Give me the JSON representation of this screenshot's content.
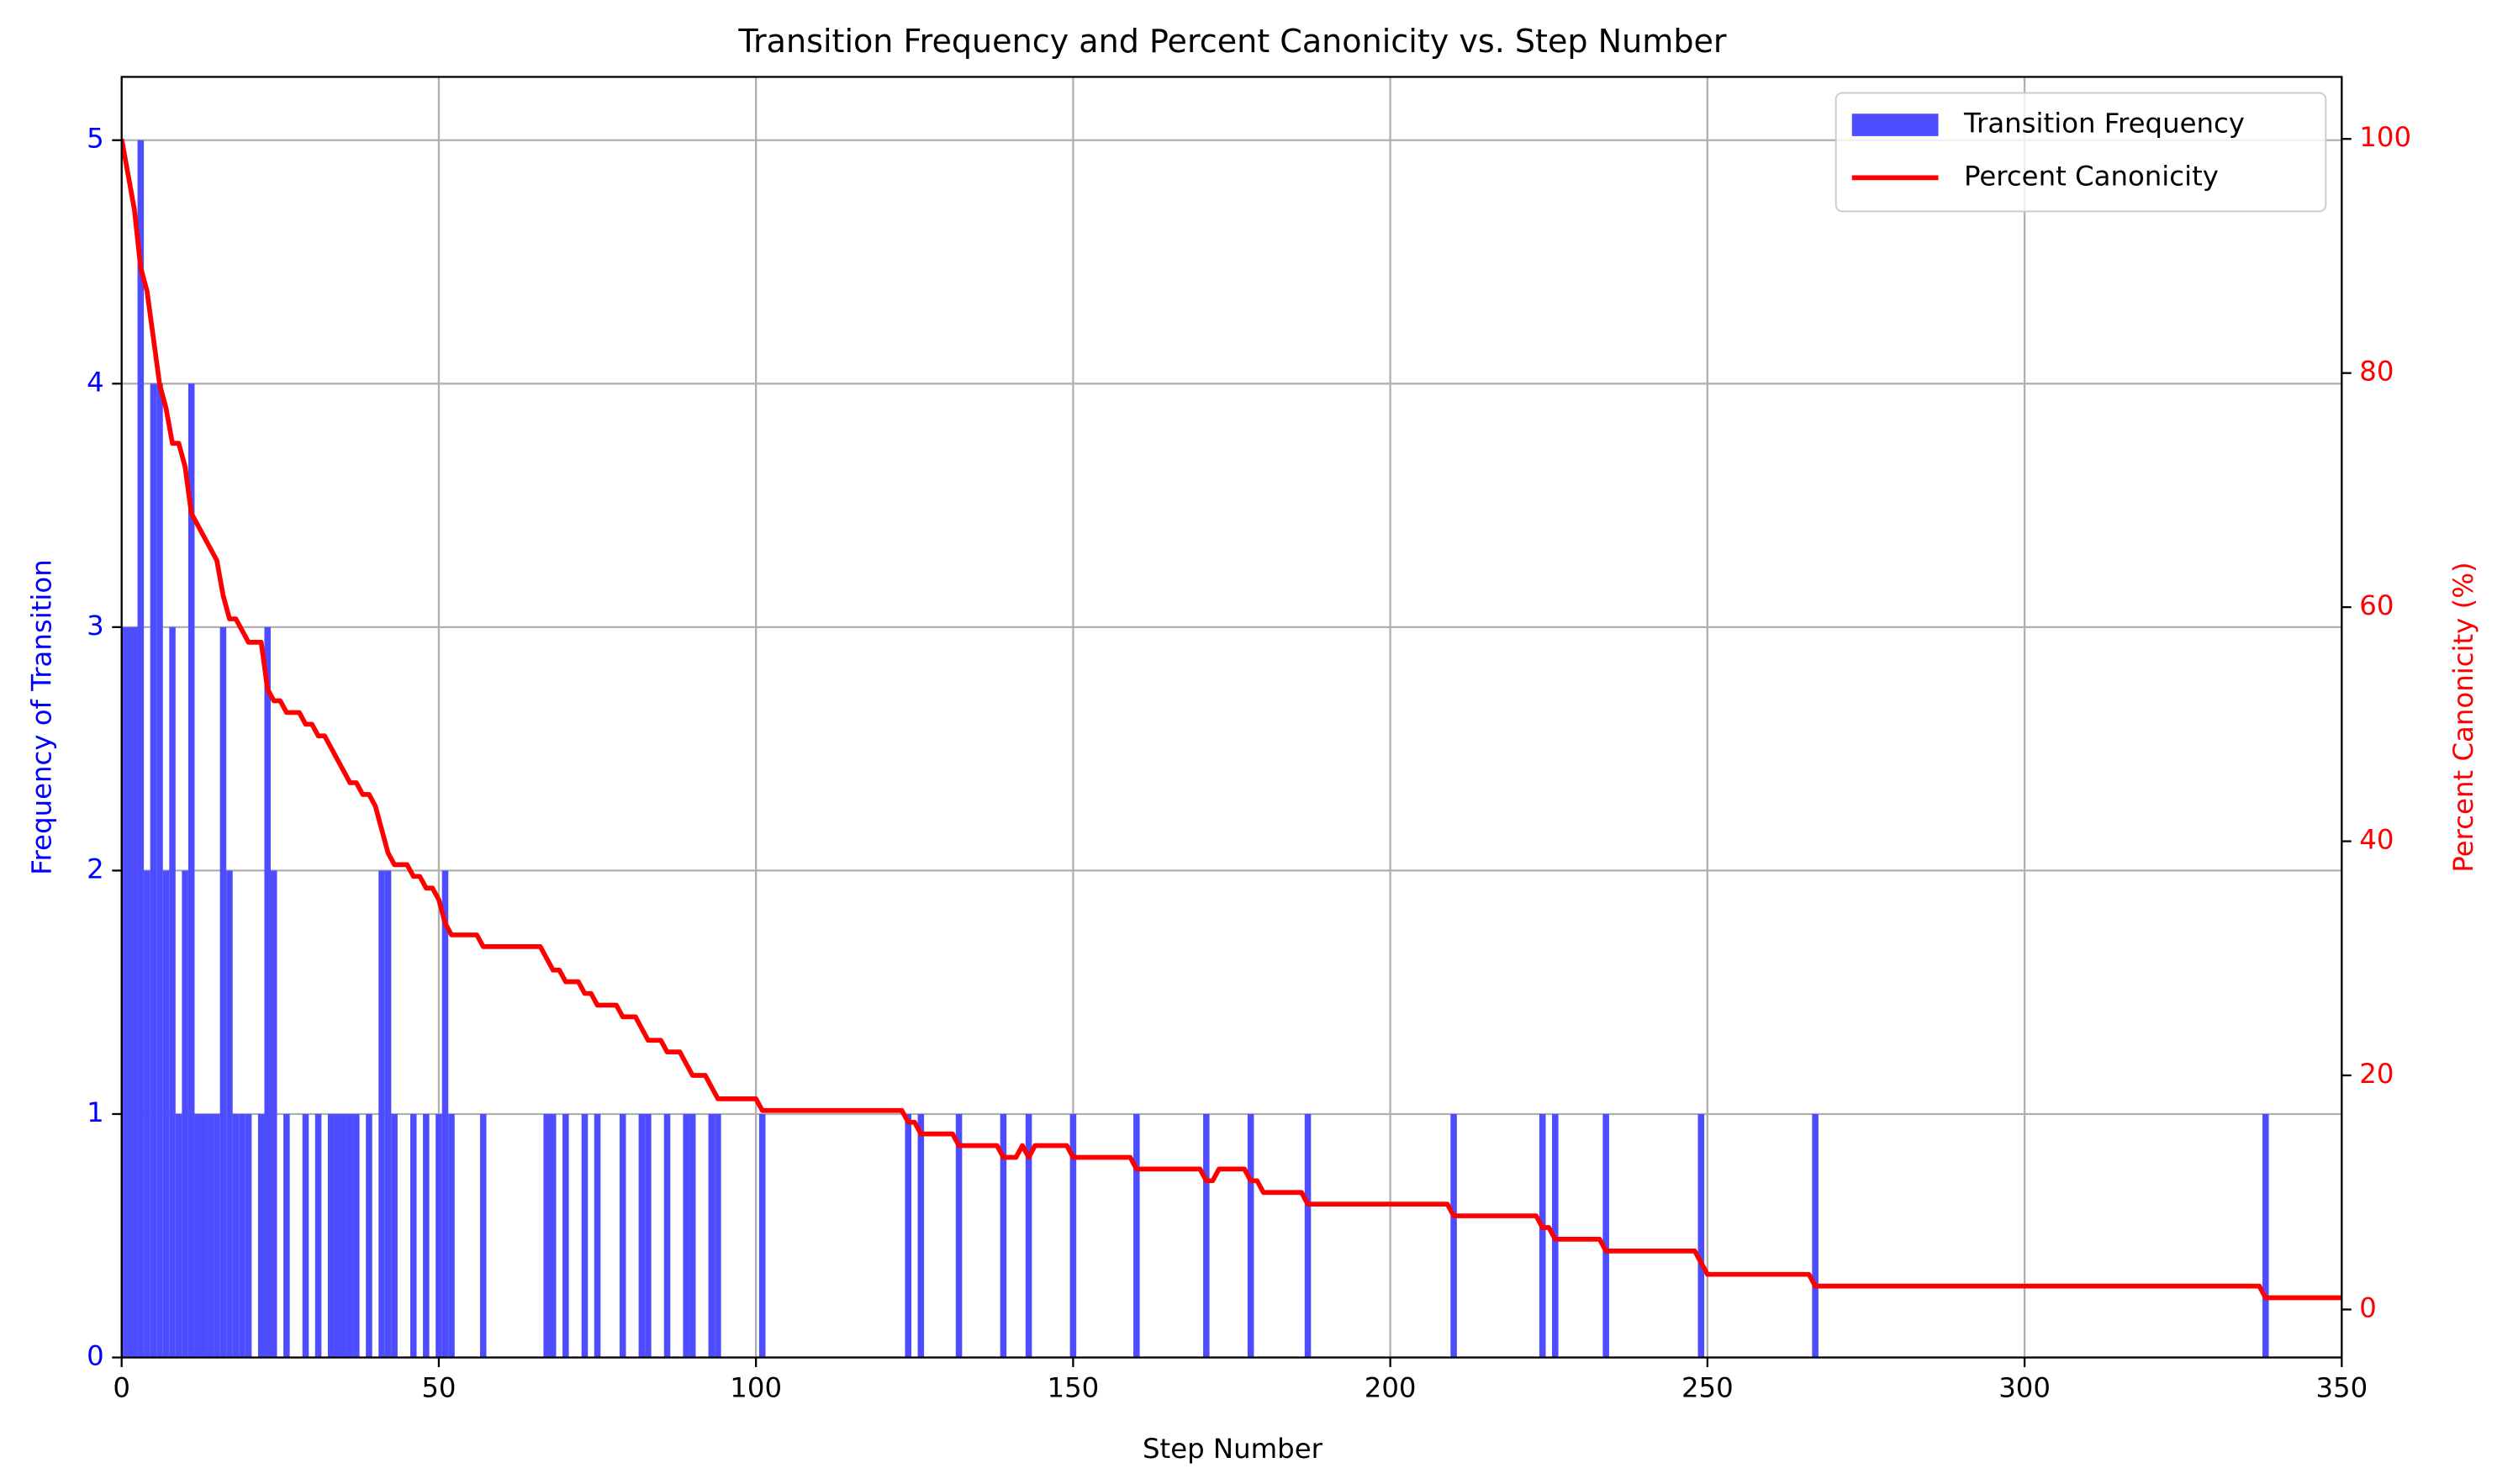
{
  "chart_data": {
    "type": "combo",
    "title": "Transition Frequency and Percent Canonicity vs. Step Number",
    "xlabel": "Step Number",
    "ylabel": "Frequency of Transition",
    "y2label": "Percent Canonicity (%)",
    "xlim": [
      0,
      350
    ],
    "xticks": [
      0,
      50,
      100,
      150,
      200,
      250,
      300,
      350
    ],
    "ylim": [
      0,
      5.26
    ],
    "yticks": [
      0,
      1,
      2,
      3,
      4,
      5
    ],
    "y2lim": [
      -4.1,
      105.3
    ],
    "y2ticks": [
      0,
      20,
      40,
      60,
      80,
      100
    ],
    "grid": true,
    "legend": "upper right",
    "series": [
      {
        "name": "Transition Frequency",
        "type": "bar",
        "color": "#4d4dff",
        "x": [
          0,
          1,
          2,
          3,
          4,
          5,
          6,
          7,
          8,
          9,
          10,
          11,
          12,
          13,
          14,
          15,
          16,
          17,
          18,
          19,
          20,
          22,
          23,
          24,
          26,
          29,
          31,
          33,
          34,
          35,
          36,
          37,
          39,
          41,
          42,
          43,
          46,
          48,
          50,
          51,
          52,
          57,
          67,
          68,
          70,
          73,
          75,
          79,
          82,
          83,
          86,
          89,
          90,
          93,
          94,
          101,
          124,
          126,
          132,
          139,
          143,
          150,
          160,
          171,
          178,
          187,
          210,
          224,
          226,
          234,
          249,
          267,
          338
        ],
        "values": [
          3,
          3,
          3,
          5,
          2,
          4,
          4,
          2,
          3,
          1,
          2,
          4,
          1,
          1,
          1,
          1,
          3,
          2,
          1,
          1,
          1,
          1,
          3,
          2,
          1,
          1,
          1,
          1,
          1,
          1,
          1,
          1,
          1,
          2,
          2,
          1,
          1,
          1,
          1,
          2,
          1,
          1,
          1,
          1,
          1,
          1,
          1,
          1,
          1,
          1,
          1,
          1,
          1,
          1,
          1,
          1,
          1,
          1,
          1,
          1,
          1,
          1,
          1,
          1,
          1,
          1,
          1,
          1,
          1,
          1,
          1,
          1,
          1
        ]
      },
      {
        "name": "Percent Canonicity",
        "type": "line",
        "axis": "y2",
        "color": "#ff0000",
        "x": [
          0,
          1,
          2,
          3,
          4,
          5,
          6,
          7,
          8,
          9,
          10,
          11,
          12,
          13,
          14,
          15,
          16,
          17,
          18,
          19,
          20,
          22,
          23,
          24,
          25,
          26,
          28,
          29,
          30,
          31,
          32,
          33,
          34,
          35,
          36,
          37,
          38,
          39,
          40,
          41,
          42,
          43,
          45,
          46,
          47,
          48,
          49,
          50,
          51,
          52,
          56,
          57,
          66,
          67,
          68,
          69,
          70,
          72,
          73,
          74,
          75,
          78,
          79,
          81,
          82,
          83,
          85,
          86,
          88,
          89,
          90,
          92,
          93,
          94,
          100,
          101,
          123,
          124,
          125,
          126,
          131,
          132,
          138,
          139,
          141,
          142,
          143,
          144,
          149,
          150,
          159,
          160,
          170,
          171,
          172,
          173,
          177,
          178,
          179,
          180,
          186,
          187,
          209,
          210,
          223,
          224,
          225,
          226,
          233,
          234,
          248,
          249,
          250,
          266,
          267,
          337,
          338,
          350
        ],
        "values": [
          100,
          97,
          94,
          89,
          87,
          83,
          79,
          77,
          74,
          74,
          72,
          68,
          67,
          66,
          65,
          64,
          61,
          59,
          59,
          58,
          57,
          57,
          53,
          52,
          52,
          51,
          51,
          50,
          50,
          49,
          49,
          48,
          47,
          46,
          45,
          45,
          44,
          44,
          43,
          41,
          39,
          38,
          38,
          37,
          37,
          36,
          36,
          35,
          33,
          32,
          32,
          31,
          31,
          30,
          29,
          29,
          28,
          28,
          27,
          27,
          26,
          26,
          25,
          25,
          24,
          23,
          23,
          22,
          22,
          21,
          20,
          20,
          19,
          18,
          18,
          17,
          17,
          16,
          16,
          15,
          15,
          14,
          14,
          13,
          13,
          14,
          13,
          14,
          14,
          13,
          13,
          12,
          12,
          11,
          11,
          12,
          12,
          11,
          11,
          10,
          10,
          9,
          9,
          8,
          8,
          7,
          7,
          6,
          6,
          5,
          5,
          4,
          3,
          3,
          2,
          2,
          1,
          1
        ]
      }
    ]
  }
}
